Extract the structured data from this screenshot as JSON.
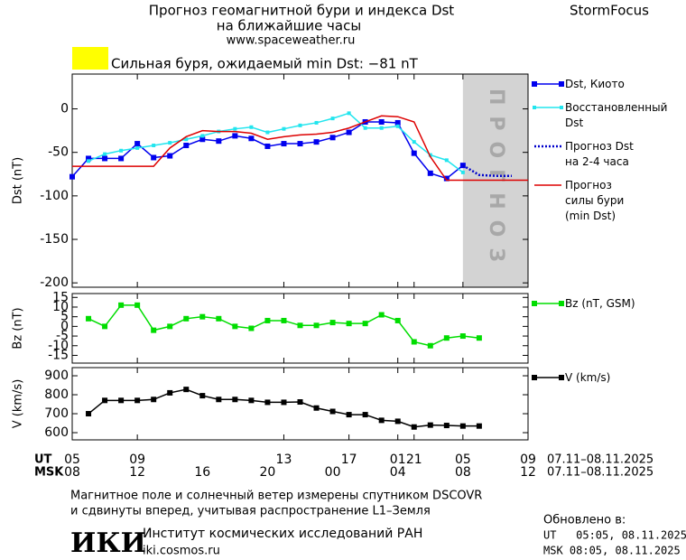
{
  "header": {
    "title": "Прогноз геомагнитной бури и индекса Dst",
    "subtitle": "на ближайшие часы",
    "url": "www.spaceweather.ru",
    "brand": "StormFocus",
    "alert": {
      "color": "#ffff00",
      "text": "Сильная буря, ожидаемый min Dst: −81 nT"
    }
  },
  "chart_data": [
    {
      "type": "line",
      "y_label": "Dst (nT)",
      "xlim": [
        0,
        28
      ],
      "ylim": [
        -205,
        40
      ],
      "yticks": [
        0,
        -50,
        -100,
        -150,
        -200
      ],
      "shade": {
        "xlim": [
          24,
          28
        ],
        "color": "#d3d3d3",
        "label": "ПРОГНОЗ"
      },
      "series": [
        {
          "name": "Dst, Киото",
          "color": "#0000ee",
          "marker": "square",
          "x": [
            0,
            1,
            2,
            3,
            4,
            5,
            6,
            7,
            8,
            9,
            10,
            11,
            12,
            13,
            14,
            15,
            16,
            17,
            18,
            19,
            20,
            21,
            22,
            23,
            24
          ],
          "values": [
            -78,
            -57,
            -57,
            -57,
            -40,
            -56,
            -54,
            -42,
            -35,
            -37,
            -31,
            -34,
            -43,
            -40,
            -40,
            -38,
            -33,
            -27,
            -15,
            -15,
            -16,
            -51,
            -74,
            -80,
            -65
          ]
        },
        {
          "name": "Восстановленный\nDst",
          "color": "#22e5ee",
          "marker": "small-square",
          "x": [
            1,
            2,
            3,
            4,
            5,
            6,
            7,
            8,
            9,
            10,
            11,
            12,
            13,
            14,
            15,
            16,
            17,
            18,
            19,
            20,
            21,
            22,
            23,
            24
          ],
          "values": [
            -60,
            -52,
            -48,
            -45,
            -42,
            -39,
            -35,
            -31,
            -26,
            -23,
            -21,
            -27,
            -23,
            -19,
            -16,
            -11,
            -5,
            -22,
            -22,
            -20,
            -38,
            -53,
            -59,
            -73
          ]
        },
        {
          "name": "Прогноз Dst\nна 2-4 часа",
          "color": "#0000cc",
          "dash": "dotted",
          "x": [
            24,
            25,
            26,
            27
          ],
          "values": [
            -65,
            -76,
            -77,
            -77
          ]
        },
        {
          "name": "Прогноз\nсилы бури\n(min Dst)",
          "color": "#dd0000",
          "x": [
            0,
            5,
            6,
            7,
            8,
            9,
            10,
            11,
            12,
            13,
            14,
            15,
            16,
            17,
            18,
            19,
            20,
            21,
            22,
            23,
            24,
            28
          ],
          "values": [
            -66,
            -66,
            -45,
            -32,
            -25,
            -26,
            -26,
            -28,
            -35,
            -32,
            -30,
            -29,
            -27,
            -22,
            -15,
            -8,
            -9,
            -15,
            -55,
            -82,
            -82,
            -82
          ]
        }
      ]
    },
    {
      "type": "line",
      "y_label": "Bz (nT)",
      "xlim": [
        0,
        28
      ],
      "ylim": [
        -19,
        17
      ],
      "yticks": [
        15,
        10,
        5,
        0,
        -5,
        -10,
        -15
      ],
      "series": [
        {
          "name": "Bz (nT, GSM)",
          "color": "#00dd00",
          "marker": "square",
          "x": [
            1,
            2,
            3,
            4,
            5,
            6,
            7,
            8,
            9,
            10,
            11,
            12,
            13,
            14,
            15,
            16,
            17,
            18,
            19,
            20,
            21,
            22,
            23,
            24,
            25
          ],
          "values": [
            4,
            0,
            11,
            11,
            -2,
            0,
            4,
            5,
            4,
            0,
            -1,
            3,
            3,
            0.5,
            0.5,
            2,
            1.5,
            1.5,
            6,
            3,
            -8,
            -10,
            -6,
            -5,
            -6
          ]
        }
      ]
    },
    {
      "type": "line",
      "y_label": "V (km/s)",
      "xlim": [
        0,
        28
      ],
      "ylim": [
        562,
        943
      ],
      "yticks": [
        900,
        800,
        700,
        600
      ],
      "x_label": "UT",
      "x2_label": "MSK",
      "date_range": "07.11–08.11.2025",
      "xticks": [
        {
          "value": 0,
          "label": "05"
        },
        {
          "value": 4,
          "label": "09"
        },
        13,
        17,
        21,
        {
          "value": 20,
          "label": "01"
        },
        {
          "value": 24,
          "label": "05"
        },
        {
          "value": 28,
          "label": "09"
        }
      ],
      "x2ticks": [
        {
          "value": 0,
          "label": "08"
        },
        {
          "value": 4,
          "label": "12"
        },
        {
          "value": 8,
          "label": "16"
        },
        {
          "value": 12,
          "label": "20"
        },
        {
          "value": 16,
          "label": "00"
        },
        {
          "value": 20,
          "label": "04"
        },
        {
          "value": 24,
          "label": "08"
        },
        {
          "value": 28,
          "label": "12"
        }
      ],
      "series": [
        {
          "name": "V (km/s)",
          "color": "#000000",
          "marker": "square",
          "x": [
            1,
            2,
            3,
            4,
            5,
            6,
            7,
            8,
            9,
            10,
            11,
            12,
            13,
            14,
            15,
            16,
            17,
            18,
            19,
            20,
            21,
            22,
            23,
            24,
            25
          ],
          "values": [
            700,
            770,
            770,
            770,
            775,
            810,
            828,
            795,
            775,
            775,
            770,
            760,
            760,
            762,
            730,
            712,
            695,
            695,
            665,
            660,
            630,
            640,
            638,
            635,
            635
          ]
        }
      ]
    }
  ],
  "footer": {
    "note": [
      "Магнитное поле и солнечный ветер измерены спутником DSCOVR",
      "и сдвинуты вперед, учитывая распространение L1–Земля"
    ],
    "logo": "ИКИ",
    "institute": "Институт космических исследований РАН",
    "site": "iki.cosmos.ru",
    "updated": {
      "label": "Обновлено в:",
      "ut": "UT   05:05, 08.11.2025",
      "msk": "MSK 08:05, 08.11.2025"
    }
  }
}
